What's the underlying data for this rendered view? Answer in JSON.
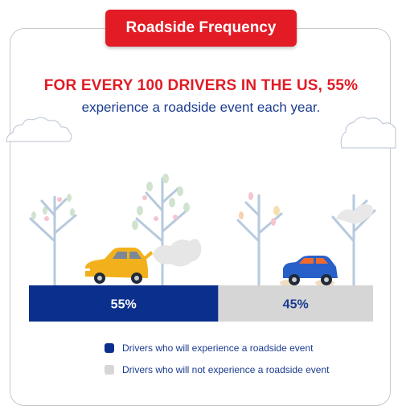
{
  "title": "Roadside Frequency",
  "headline": "FOR EVERY 100 DRIVERS IN THE US, 55%",
  "subline": "experience a roadside event each year.",
  "colors": {
    "accent": "#e21b25",
    "experience": "#0a2f8c",
    "not_experience": "#d6d6d6"
  },
  "chart_data": {
    "type": "bar",
    "orientation": "horizontal-stacked",
    "title": "Roadside Frequency",
    "series": [
      {
        "name": "Drivers who will experience a roadside event",
        "value": 55,
        "label": "55%",
        "color": "#0a2f8c"
      },
      {
        "name": "Drivers who will not experience a roadside event",
        "value": 45,
        "label": "45%",
        "color": "#d6d6d6"
      }
    ],
    "total": 100,
    "legend": "bottom"
  },
  "icons": [
    "cloud-icon",
    "tree-icon",
    "car-icon",
    "smoke-icon",
    "dust-icon"
  ]
}
